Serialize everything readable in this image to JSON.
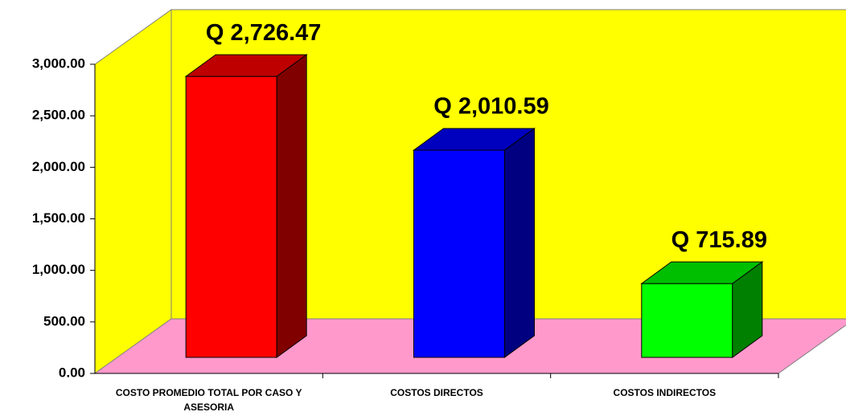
{
  "chart_data": {
    "type": "bar3d",
    "categories": [
      "COSTO PROMEDIO TOTAL POR CASO Y ASESORIA",
      "COSTOS DIRECTOS",
      "COSTOS INDIRECTOS"
    ],
    "values": [
      2726.47,
      2010.59,
      715.89
    ],
    "value_labels": [
      "Q 2,726.47",
      "Q 2,010.59",
      "Q 715.89"
    ],
    "colors": [
      "#ff0000",
      "#0000ff",
      "#00ff00"
    ],
    "wall_color": "#ffff00",
    "floor_color": "#ff99cc",
    "ylim": [
      0,
      3000
    ],
    "yticks": [
      {
        "value": 0,
        "label": "0.00"
      },
      {
        "value": 500,
        "label": "500.00"
      },
      {
        "value": 1000,
        "label": "1,000.00"
      },
      {
        "value": 1500,
        "label": "1,500.00"
      },
      {
        "value": 2000,
        "label": "2,000.00"
      },
      {
        "value": 2500,
        "label": "2,500.00"
      },
      {
        "value": 3000,
        "label": "3,000.00"
      }
    ]
  }
}
